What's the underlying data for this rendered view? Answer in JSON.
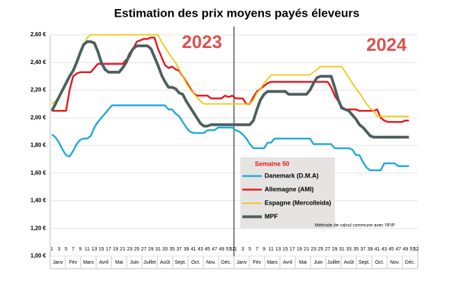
{
  "chart_data": {
    "type": "line",
    "title": "Estimation des prix moyens payés éleveurs",
    "annotations": [
      "2023",
      "2024",
      "Semaine 50",
      "Méthode de calcul commune avec l'IFIP"
    ],
    "categories": [
      "1",
      null,
      "3",
      null,
      "5",
      null,
      "7",
      null,
      "9",
      null,
      "11",
      null,
      "13",
      null,
      "15",
      null,
      "17",
      null,
      "19",
      null,
      "21",
      null,
      "23",
      null,
      "25",
      null,
      "27",
      null,
      "29",
      null,
      "31",
      null,
      "33",
      null,
      "35",
      null,
      "37",
      null,
      "39",
      null,
      "41",
      null,
      "43",
      null,
      "45",
      null,
      "47",
      null,
      "49",
      null,
      "51",
      "52",
      "1",
      null,
      "3",
      null,
      "5",
      null,
      "7",
      null,
      "9",
      null,
      "11",
      null,
      "13",
      null,
      "15",
      null,
      "17",
      null,
      "19",
      null,
      "21",
      null,
      "23",
      null,
      "25",
      null,
      "27",
      null,
      "29",
      null,
      "31",
      null,
      "33",
      null,
      "35",
      null,
      "37",
      null,
      "39",
      null,
      "41",
      null,
      "43",
      null,
      "45",
      null,
      "47",
      null,
      "49",
      null,
      "51",
      "52"
    ],
    "x_groups": [
      "Janv",
      "Fév",
      "Mars",
      "Avril",
      "Mai",
      "Juin",
      "Juillet",
      "Août",
      "Sept.",
      "Oct.",
      "Nov.",
      "Déc."
    ],
    "series": [
      {
        "name": "Danemark (D.M.A)",
        "color": "#1ea7dc",
        "width": 2.5,
        "values": [
          1.88,
          1.86,
          1.82,
          1.77,
          1.73,
          1.72,
          1.76,
          1.81,
          1.84,
          1.85,
          1.85,
          1.87,
          1.93,
          1.97,
          2.0,
          2.03,
          2.06,
          2.09,
          2.09,
          2.09,
          2.09,
          2.09,
          2.09,
          2.09,
          2.09,
          2.09,
          2.09,
          2.09,
          2.09,
          2.09,
          2.09,
          2.09,
          2.09,
          2.06,
          2.06,
          2.03,
          2.01,
          1.97,
          1.93,
          1.9,
          1.89,
          1.89,
          1.89,
          1.89,
          1.91,
          1.91,
          1.91,
          1.93,
          1.93,
          1.93,
          1.93,
          1.93,
          1.91,
          1.9,
          1.88,
          1.85,
          1.81,
          1.78,
          1.78,
          1.78,
          1.78,
          1.82,
          1.82,
          1.85,
          1.85,
          1.85,
          1.85,
          1.85,
          1.85,
          1.85,
          1.85,
          1.85,
          1.85,
          1.85,
          1.81,
          1.81,
          1.81,
          1.81,
          1.81,
          1.81,
          1.78,
          1.78,
          1.78,
          1.78,
          1.78,
          1.77,
          1.73,
          1.73,
          1.68,
          1.64,
          1.62,
          1.62,
          1.62,
          1.62,
          1.67,
          1.67,
          1.67,
          1.67,
          1.65,
          1.65,
          1.65,
          1.65,
          null,
          null
        ]
      },
      {
        "name": "Allemagne (AMI)",
        "color": "#e8141a",
        "width": 2.5,
        "values": [
          2.05,
          2.05,
          2.05,
          2.05,
          2.05,
          2.2,
          2.3,
          2.32,
          2.33,
          2.33,
          2.33,
          2.33,
          2.36,
          2.39,
          2.39,
          2.39,
          2.39,
          2.39,
          2.39,
          2.39,
          2.39,
          2.42,
          2.44,
          2.5,
          2.55,
          2.56,
          2.57,
          2.57,
          2.58,
          2.58,
          2.5,
          2.44,
          2.38,
          2.36,
          2.37,
          2.35,
          2.34,
          2.3,
          2.26,
          2.22,
          2.18,
          2.16,
          2.16,
          2.16,
          2.16,
          2.14,
          2.14,
          2.14,
          2.14,
          2.16,
          2.15,
          2.16,
          2.14,
          2.14,
          2.14,
          2.1,
          2.1,
          2.15,
          2.19,
          2.21,
          2.23,
          2.25,
          2.26,
          2.26,
          2.26,
          2.26,
          2.26,
          2.26,
          2.26,
          2.26,
          2.26,
          2.26,
          2.26,
          2.26,
          2.26,
          2.26,
          2.26,
          2.26,
          2.26,
          2.22,
          2.16,
          2.12,
          2.08,
          2.06,
          2.06,
          2.06,
          2.06,
          2.05,
          2.05,
          2.05,
          2.05,
          2.05,
          2.06,
          2.0,
          1.98,
          1.97,
          1.97,
          1.97,
          1.97,
          1.97,
          1.98,
          1.98,
          null,
          null
        ]
      },
      {
        "name": "Espagne (Mercolleida)",
        "color": "#f5c400",
        "width": 1.8,
        "values": [
          2.1,
          2.12,
          2.15,
          2.2,
          2.25,
          2.3,
          2.35,
          2.4,
          2.46,
          2.52,
          2.58,
          2.6,
          2.6,
          2.6,
          2.6,
          2.6,
          2.6,
          2.6,
          2.6,
          2.6,
          2.6,
          2.6,
          2.6,
          2.6,
          2.6,
          2.6,
          2.6,
          2.6,
          2.6,
          2.6,
          2.6,
          2.55,
          2.51,
          2.47,
          2.43,
          2.4,
          2.35,
          2.3,
          2.25,
          2.21,
          2.18,
          2.15,
          2.12,
          2.1,
          2.1,
          2.1,
          2.1,
          2.1,
          2.1,
          2.1,
          2.1,
          2.1,
          2.1,
          2.1,
          2.1,
          2.1,
          2.1,
          2.13,
          2.18,
          2.21,
          2.25,
          2.28,
          2.31,
          2.31,
          2.31,
          2.31,
          2.31,
          2.31,
          2.31,
          2.31,
          2.31,
          2.31,
          2.31,
          2.31,
          2.33,
          2.35,
          2.37,
          2.37,
          2.37,
          2.37,
          2.37,
          2.37,
          2.37,
          2.33,
          2.29,
          2.25,
          2.21,
          2.18,
          2.14,
          2.1,
          2.07,
          2.05,
          2.01,
          2.01,
          2.01,
          2.01,
          2.01,
          2.01,
          2.01,
          2.01,
          2.01,
          2.01,
          null,
          null
        ]
      },
      {
        "name": "MPF",
        "color": "#4d5f5f",
        "width": 4,
        "values": [
          2.05,
          2.1,
          2.15,
          2.2,
          2.25,
          2.3,
          2.34,
          2.4,
          2.47,
          2.53,
          2.55,
          2.55,
          2.54,
          2.48,
          2.4,
          2.35,
          2.33,
          2.33,
          2.33,
          2.33,
          2.36,
          2.4,
          2.46,
          2.5,
          2.52,
          2.52,
          2.52,
          2.52,
          2.5,
          2.44,
          2.38,
          2.31,
          2.26,
          2.22,
          2.22,
          2.21,
          2.18,
          2.17,
          2.12,
          2.08,
          2.04,
          2.0,
          1.96,
          1.94,
          1.94,
          1.95,
          1.95,
          1.95,
          1.95,
          1.95,
          1.95,
          1.95,
          1.95,
          1.95,
          1.95,
          1.95,
          1.95,
          1.98,
          2.06,
          2.13,
          2.17,
          2.19,
          2.19,
          2.19,
          2.19,
          2.19,
          2.19,
          2.17,
          2.17,
          2.17,
          2.17,
          2.17,
          2.17,
          2.2,
          2.25,
          2.29,
          2.3,
          2.3,
          2.3,
          2.3,
          2.22,
          2.13,
          2.07,
          2.06,
          2.05,
          2.02,
          1.99,
          1.95,
          1.93,
          1.9,
          1.87,
          1.86,
          1.86,
          1.86,
          1.86,
          1.86,
          1.86,
          1.86,
          1.86,
          1.86,
          1.86,
          1.86,
          null,
          null
        ]
      }
    ],
    "ylim": [
      1.0,
      2.6
    ],
    "yticks": [
      {
        "value": 1.0,
        "label": "1,00 €"
      },
      {
        "value": 1.2,
        "label": "1,20 €"
      },
      {
        "value": 1.4,
        "label": "1,40 €"
      },
      {
        "value": 1.6,
        "label": "1,60 €"
      },
      {
        "value": 1.8,
        "label": "1,80 €"
      },
      {
        "value": 2.0,
        "label": "2,00 €"
      },
      {
        "value": 2.2,
        "label": "2,20 €"
      },
      {
        "value": 2.4,
        "label": "2,40 €"
      },
      {
        "value": 2.6,
        "label": "2,60 €"
      }
    ],
    "grid": true
  }
}
